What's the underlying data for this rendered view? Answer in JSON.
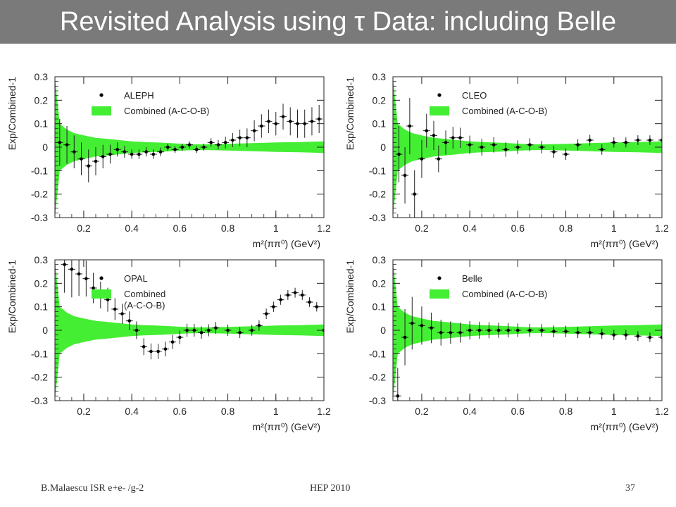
{
  "slide": {
    "title": "Revisited Analysis using τ Data: including Belle",
    "title_bar_color": "#7a7a7a",
    "footer_left": "B.Malaescu   ISR e+e- /g-2",
    "footer_center": "HEP 2010",
    "footer_right": "37"
  },
  "chart_data": [
    {
      "type": "scatter",
      "experiment": "ALEPH",
      "xlabel": "m²(ππ⁰) (GeV²)",
      "ylabel": "Exp/Combined-1",
      "xlim": [
        0.08,
        1.2
      ],
      "ylim": [
        -0.3,
        0.3
      ],
      "xticks": [
        "0.2",
        "0.4",
        "0.6",
        "0.8",
        "1",
        "1.2"
      ],
      "yticks": [
        "-0.3",
        "-0.2",
        "-0.1",
        "0",
        "0.1",
        "0.2",
        "0.3"
      ],
      "band_color": "#44ee33",
      "legend": {
        "position": "top-left",
        "points_label": "ALEPH",
        "band_label": "Combined (A-C-O-B)"
      },
      "band": {
        "x": [
          0.08,
          0.1,
          0.13,
          0.16,
          0.2,
          0.25,
          0.3,
          0.35,
          0.4,
          0.45,
          0.5,
          0.55,
          0.6,
          0.65,
          0.7,
          0.8,
          0.9,
          1.0,
          1.1,
          1.2
        ],
        "halfwidth": [
          0.3,
          0.1,
          0.075,
          0.06,
          0.05,
          0.04,
          0.035,
          0.03,
          0.025,
          0.022,
          0.02,
          0.018,
          0.015,
          0.013,
          0.012,
          0.014,
          0.017,
          0.02,
          0.022,
          0.025
        ]
      },
      "points": {
        "x": [
          0.1,
          0.13,
          0.16,
          0.19,
          0.22,
          0.25,
          0.28,
          0.31,
          0.34,
          0.37,
          0.4,
          0.43,
          0.46,
          0.49,
          0.52,
          0.55,
          0.58,
          0.61,
          0.64,
          0.67,
          0.7,
          0.73,
          0.76,
          0.79,
          0.82,
          0.85,
          0.88,
          0.91,
          0.94,
          0.97,
          1.0,
          1.03,
          1.06,
          1.09,
          1.12,
          1.15,
          1.18
        ],
        "y": [
          0.02,
          0.01,
          -0.02,
          -0.05,
          -0.08,
          -0.06,
          -0.04,
          -0.03,
          -0.01,
          -0.02,
          -0.03,
          -0.03,
          -0.02,
          -0.03,
          -0.02,
          0.0,
          -0.01,
          0.0,
          0.01,
          -0.01,
          0.0,
          0.02,
          0.01,
          0.02,
          0.03,
          0.04,
          0.04,
          0.07,
          0.09,
          0.11,
          0.1,
          0.13,
          0.11,
          0.1,
          0.1,
          0.11,
          0.12
        ],
        "err": [
          0.1,
          0.08,
          0.07,
          0.07,
          0.07,
          0.06,
          0.05,
          0.04,
          0.03,
          0.025,
          0.02,
          0.02,
          0.02,
          0.02,
          0.018,
          0.015,
          0.015,
          0.015,
          0.015,
          0.015,
          0.015,
          0.018,
          0.02,
          0.025,
          0.03,
          0.035,
          0.04,
          0.045,
          0.05,
          0.05,
          0.05,
          0.055,
          0.06,
          0.06,
          0.06,
          0.06,
          0.06
        ]
      }
    },
    {
      "type": "scatter",
      "experiment": "CLEO",
      "xlabel": "m²(ππ⁰) (GeV²)",
      "ylabel": "Exp/Combined-1",
      "xlim": [
        0.08,
        1.2
      ],
      "ylim": [
        -0.3,
        0.3
      ],
      "xticks": [
        "0.2",
        "0.4",
        "0.6",
        "0.8",
        "1",
        "1.2"
      ],
      "yticks": [
        "-0.3",
        "-0.2",
        "-0.1",
        "0",
        "0.1",
        "0.2",
        "0.3"
      ],
      "band_color": "#44ee33",
      "legend": {
        "position": "top-left",
        "points_label": "CLEO",
        "band_label": "Combined (A-C-O-B)"
      },
      "band": {
        "x": [
          0.08,
          0.1,
          0.13,
          0.16,
          0.2,
          0.25,
          0.3,
          0.35,
          0.4,
          0.45,
          0.5,
          0.55,
          0.6,
          0.65,
          0.7,
          0.8,
          0.9,
          1.0,
          1.1,
          1.2
        ],
        "halfwidth": [
          0.3,
          0.1,
          0.075,
          0.06,
          0.05,
          0.04,
          0.035,
          0.03,
          0.025,
          0.022,
          0.02,
          0.018,
          0.015,
          0.013,
          0.012,
          0.014,
          0.017,
          0.02,
          0.022,
          0.025
        ]
      },
      "points": {
        "x": [
          0.105,
          0.13,
          0.15,
          0.17,
          0.2,
          0.22,
          0.25,
          0.27,
          0.3,
          0.33,
          0.36,
          0.4,
          0.45,
          0.5,
          0.55,
          0.6,
          0.65,
          0.7,
          0.75,
          0.8,
          0.85,
          0.9,
          0.95,
          1.0,
          1.05,
          1.1,
          1.15,
          1.2
        ],
        "y": [
          -0.03,
          -0.12,
          0.09,
          -0.2,
          -0.05,
          0.07,
          0.05,
          -0.05,
          0.02,
          0.04,
          0.04,
          0.01,
          0.0,
          0.01,
          -0.01,
          0.0,
          0.01,
          0.0,
          -0.02,
          -0.03,
          0.01,
          0.03,
          -0.01,
          0.02,
          0.02,
          0.03,
          0.03,
          0.03
        ]
      }
    },
    {
      "type": "scatter",
      "experiment": "OPAL",
      "xlabel": "m²(ππ⁰) (GeV²)",
      "ylabel": "Exp/Combined-1",
      "xlim": [
        0.08,
        1.2
      ],
      "ylim": [
        -0.3,
        0.3
      ],
      "xticks": [
        "0.2",
        "0.4",
        "0.6",
        "0.8",
        "1",
        "1.2"
      ],
      "yticks": [
        "-0.3",
        "-0.2",
        "-0.1",
        "0",
        "0.1",
        "0.2",
        "0.3"
      ],
      "band_color": "#44ee33",
      "legend": {
        "position": "top-left",
        "points_label": "OPAL",
        "band_label": "Combined\n(A-C-O-B)"
      },
      "band": {
        "x": [
          0.08,
          0.1,
          0.13,
          0.16,
          0.2,
          0.25,
          0.3,
          0.35,
          0.4,
          0.45,
          0.5,
          0.55,
          0.6,
          0.65,
          0.7,
          0.8,
          0.9,
          1.0,
          1.1,
          1.2
        ],
        "halfwidth": [
          0.3,
          0.1,
          0.075,
          0.06,
          0.05,
          0.04,
          0.035,
          0.03,
          0.025,
          0.022,
          0.02,
          0.018,
          0.015,
          0.013,
          0.012,
          0.014,
          0.017,
          0.02,
          0.022,
          0.025
        ]
      },
      "points": {
        "x": [
          0.12,
          0.15,
          0.18,
          0.21,
          0.24,
          0.27,
          0.3,
          0.33,
          0.36,
          0.39,
          0.42,
          0.45,
          0.48,
          0.51,
          0.54,
          0.57,
          0.6,
          0.63,
          0.66,
          0.69,
          0.72,
          0.75,
          0.8,
          0.85,
          0.9,
          0.93,
          0.96,
          0.99,
          1.02,
          1.05,
          1.08,
          1.11,
          1.14,
          1.17,
          1.2
        ],
        "y": [
          0.28,
          0.26,
          0.24,
          0.22,
          0.18,
          0.15,
          0.13,
          0.09,
          0.07,
          0.04,
          0.0,
          -0.07,
          -0.09,
          -0.09,
          -0.08,
          -0.05,
          -0.03,
          0.0,
          0.0,
          -0.01,
          0.0,
          0.01,
          0.0,
          -0.01,
          0.0,
          0.02,
          0.07,
          0.1,
          0.13,
          0.15,
          0.16,
          0.15,
          0.12,
          0.1,
          0.0
        ]
      }
    },
    {
      "type": "scatter",
      "experiment": "Belle",
      "xlabel": "m²(ππ⁰) (GeV²)",
      "ylabel": "Exp/Combined-1",
      "xlim": [
        0.08,
        1.2
      ],
      "ylim": [
        -0.3,
        0.3
      ],
      "xticks": [
        "0.2",
        "0.4",
        "0.6",
        "0.8",
        "1",
        "1.2"
      ],
      "yticks": [
        "-0.3",
        "-0.2",
        "-0.1",
        "0",
        "0.1",
        "0.2",
        "0.3"
      ],
      "band_color": "#44ee33",
      "legend": {
        "position": "top-left",
        "points_label": "Belle",
        "band_label": "Combined (A-C-O-B)"
      },
      "band": {
        "x": [
          0.08,
          0.1,
          0.13,
          0.16,
          0.2,
          0.25,
          0.3,
          0.35,
          0.4,
          0.45,
          0.5,
          0.55,
          0.6,
          0.65,
          0.7,
          0.8,
          0.9,
          1.0,
          1.1,
          1.2
        ],
        "halfwidth": [
          0.3,
          0.1,
          0.075,
          0.06,
          0.05,
          0.04,
          0.035,
          0.03,
          0.025,
          0.022,
          0.02,
          0.018,
          0.015,
          0.013,
          0.012,
          0.014,
          0.017,
          0.02,
          0.022,
          0.025
        ]
      },
      "points": {
        "x": [
          0.1,
          0.13,
          0.16,
          0.2,
          0.24,
          0.28,
          0.32,
          0.36,
          0.4,
          0.44,
          0.48,
          0.52,
          0.56,
          0.6,
          0.65,
          0.7,
          0.75,
          0.8,
          0.85,
          0.9,
          0.95,
          1.0,
          1.05,
          1.1,
          1.15,
          1.2
        ],
        "y": [
          -0.28,
          -0.03,
          0.03,
          0.02,
          0.01,
          -0.01,
          -0.01,
          -0.01,
          0.0,
          0.0,
          0.0,
          0.0,
          0.0,
          0.0,
          0.0,
          0.0,
          -0.005,
          -0.005,
          -0.01,
          -0.01,
          -0.015,
          -0.02,
          -0.02,
          -0.025,
          -0.03,
          -0.03
        ]
      }
    }
  ]
}
